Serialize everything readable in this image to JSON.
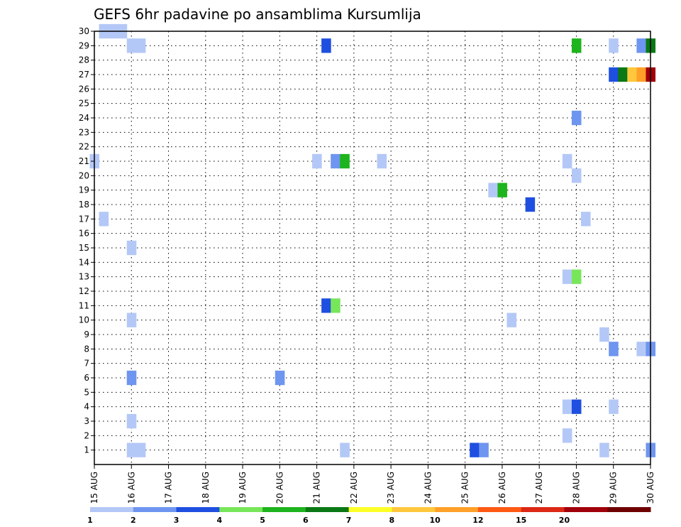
{
  "chart_data": {
    "type": "heatmap",
    "title": "GEFS 6hr padavine po ansamblima Kursumlija",
    "xlabel": "",
    "ylabel": "",
    "x_tick_labels": [
      "15 AUG",
      "16 AUG",
      "17 AUG",
      "18 AUG",
      "19 AUG",
      "20 AUG",
      "21 AUG",
      "22 AUG",
      "23 AUG",
      "24 AUG",
      "25 AUG",
      "26 AUG",
      "27 AUG",
      "28 AUG",
      "29 AUG",
      "30 AUG"
    ],
    "y_tick_labels": [
      "1",
      "2",
      "3",
      "4",
      "5",
      "6",
      "7",
      "8",
      "9",
      "10",
      "11",
      "12",
      "13",
      "14",
      "15",
      "16",
      "17",
      "18",
      "19",
      "20",
      "21",
      "22",
      "23",
      "24",
      "25",
      "26",
      "27",
      "28",
      "29",
      "30"
    ],
    "x_range_days": [
      15,
      30
    ],
    "y_range": [
      0,
      30
    ],
    "grid": true,
    "legend_placement": "bottom",
    "legend": {
      "labels": [
        "1",
        "2",
        "3",
        "4",
        "5",
        "6",
        "7",
        "8",
        "10",
        "12",
        "15",
        "20"
      ],
      "colors": [
        "#b4c8f7",
        "#6e95ef",
        "#1e4fe0",
        "#78e65a",
        "#1eb41e",
        "#0a7814",
        "#ffff28",
        "#ffc83c",
        "#ffa028",
        "#ff5a14",
        "#dc2814",
        "#a0000a",
        "#6e0000"
      ]
    },
    "cells": [
      {
        "day": 15.25,
        "member": 30,
        "color": "#b4c8f7"
      },
      {
        "day": 15.5,
        "member": 30,
        "color": "#b4c8f7"
      },
      {
        "day": 15.75,
        "member": 30,
        "color": "#b4c8f7"
      },
      {
        "day": 16,
        "member": 29,
        "color": "#b4c8f7"
      },
      {
        "day": 16.25,
        "member": 29,
        "color": "#b4c8f7"
      },
      {
        "day": 21.25,
        "member": 29,
        "color": "#1e4fe0"
      },
      {
        "day": 28,
        "member": 29,
        "color": "#1eb41e"
      },
      {
        "day": 29,
        "member": 29,
        "color": "#b4c8f7"
      },
      {
        "day": 29.75,
        "member": 29,
        "color": "#6e95ef"
      },
      {
        "day": 30,
        "member": 29,
        "color": "#0a7814"
      },
      {
        "day": 29,
        "member": 27,
        "color": "#1e4fe0"
      },
      {
        "day": 29.25,
        "member": 27,
        "color": "#0a7814"
      },
      {
        "day": 29.5,
        "member": 27,
        "color": "#ffc83c"
      },
      {
        "day": 29.75,
        "member": 27,
        "color": "#ffa028"
      },
      {
        "day": 30,
        "member": 27,
        "color": "#a0000a"
      },
      {
        "day": 28,
        "member": 24,
        "color": "#6e95ef"
      },
      {
        "day": 15,
        "member": 21,
        "color": "#b4c8f7"
      },
      {
        "day": 21,
        "member": 21,
        "color": "#b4c8f7"
      },
      {
        "day": 21.5,
        "member": 21,
        "color": "#6e95ef"
      },
      {
        "day": 21.75,
        "member": 21,
        "color": "#1eb41e"
      },
      {
        "day": 22.75,
        "member": 21,
        "color": "#b4c8f7"
      },
      {
        "day": 27.75,
        "member": 21,
        "color": "#b4c8f7"
      },
      {
        "day": 28,
        "member": 20,
        "color": "#b4c8f7"
      },
      {
        "day": 25.75,
        "member": 19,
        "color": "#b4c8f7"
      },
      {
        "day": 26,
        "member": 19,
        "color": "#1eb41e"
      },
      {
        "day": 26.75,
        "member": 18,
        "color": "#1e4fe0"
      },
      {
        "day": 15.25,
        "member": 17,
        "color": "#b4c8f7"
      },
      {
        "day": 28.25,
        "member": 17,
        "color": "#b4c8f7"
      },
      {
        "day": 16,
        "member": 15,
        "color": "#b4c8f7"
      },
      {
        "day": 27.75,
        "member": 13,
        "color": "#b4c8f7"
      },
      {
        "day": 28,
        "member": 13,
        "color": "#78e65a"
      },
      {
        "day": 21.25,
        "member": 11,
        "color": "#1e4fe0"
      },
      {
        "day": 21.5,
        "member": 11,
        "color": "#78e65a"
      },
      {
        "day": 16,
        "member": 10,
        "color": "#b4c8f7"
      },
      {
        "day": 26.25,
        "member": 10,
        "color": "#b4c8f7"
      },
      {
        "day": 28.75,
        "member": 9,
        "color": "#b4c8f7"
      },
      {
        "day": 29,
        "member": 8,
        "color": "#6e95ef"
      },
      {
        "day": 29.75,
        "member": 8,
        "color": "#b4c8f7"
      },
      {
        "day": 30,
        "member": 8,
        "color": "#6e95ef"
      },
      {
        "day": 16,
        "member": 6,
        "color": "#6e95ef"
      },
      {
        "day": 20,
        "member": 6,
        "color": "#6e95ef"
      },
      {
        "day": 27.75,
        "member": 4,
        "color": "#b4c8f7"
      },
      {
        "day": 28,
        "member": 4,
        "color": "#1e4fe0"
      },
      {
        "day": 29,
        "member": 4,
        "color": "#b4c8f7"
      },
      {
        "day": 16,
        "member": 3,
        "color": "#b4c8f7"
      },
      {
        "day": 27.75,
        "member": 2,
        "color": "#b4c8f7"
      },
      {
        "day": 16,
        "member": 1,
        "color": "#b4c8f7"
      },
      {
        "day": 16.25,
        "member": 1,
        "color": "#b4c8f7"
      },
      {
        "day": 21.75,
        "member": 1,
        "color": "#b4c8f7"
      },
      {
        "day": 25.25,
        "member": 1,
        "color": "#1e4fe0"
      },
      {
        "day": 25.5,
        "member": 1,
        "color": "#6e95ef"
      },
      {
        "day": 28.75,
        "member": 1,
        "color": "#b4c8f7"
      },
      {
        "day": 30,
        "member": 1,
        "color": "#6e95ef"
      }
    ]
  }
}
